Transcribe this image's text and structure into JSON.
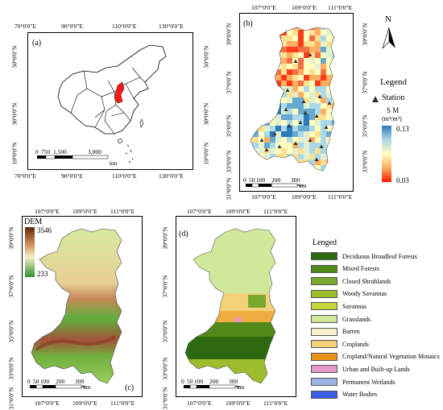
{
  "panel_a": {
    "label": "(a)",
    "top_ticks": [
      "70°0'0\"E",
      "90°0'0\"E",
      "110°0'0\"E",
      "130°0'0\"E"
    ],
    "bottom_ticks": [
      "70°0'0\"E",
      "90°0'0\"E",
      "110°0'0\"E",
      "130°0'0\"E"
    ],
    "left_ticks": [
      "50°0'0\"N",
      "30°0'0\"N",
      "10°0'0\"N"
    ],
    "right_ticks": [
      "50°0'0\"N",
      "30°0'0\"N",
      "10°0'0\"N"
    ],
    "scale_labels": [
      "0",
      "750",
      "1,500",
      "3,000"
    ],
    "scale_unit": "km",
    "highlight_color": "#ff1a1a"
  },
  "panel_b": {
    "label": "(b)",
    "top_ticks": [
      "107°0'0\"E",
      "109°0'0\"E",
      "111°0'0\"E"
    ],
    "bottom_ticks": [
      "107°0'0\"E",
      "109°0'0\"E",
      "111°0'0\"E"
    ],
    "left_ticks": [
      "39°0'0\"N",
      "37°0'0\"N",
      "35°0'0\"N",
      "33°0'0\"N",
      "31°0'0\"N"
    ],
    "right_ticks": [
      "39°0'0\"N",
      "37°0'0\"N",
      "35°0'0\"N",
      "33°0'0\"N"
    ],
    "scale_labels": [
      "0",
      "50",
      "100",
      "200",
      "300"
    ],
    "scale_unit": "km",
    "north": "N",
    "legend_title": "Legend",
    "station_label": "Station",
    "sm_title": "S M",
    "sm_unit": "(m³/m³)",
    "sm_max": "0.13",
    "sm_min": "0.03"
  },
  "panel_c": {
    "label": "(c)",
    "top_ticks": [
      "107°0'0\"E",
      "109°0'0\"E",
      "111°0'0\"E"
    ],
    "bottom_ticks": [
      "107°0'0\"E",
      "109°0'0\"E",
      "111°0'0\"E"
    ],
    "left_ticks": [
      "39°0'0\"N",
      "37°0'0\"N",
      "35°0'0\"N",
      "33°0'0\"N",
      "31°0'0\"N"
    ],
    "scale_labels": [
      "0",
      "50",
      "100",
      "200",
      "300"
    ],
    "scale_unit": "km",
    "dem_title": "DEM",
    "dem_max": "3546",
    "dem_min": "233"
  },
  "panel_d": {
    "label": "(d)",
    "top_ticks": [
      "107°0'0\"E",
      "109°0'0\"E",
      "111°0'0\"E"
    ],
    "bottom_ticks": [
      "107°0'0\"E",
      "109°0'0\"E",
      "111°0'0\"E"
    ],
    "left_ticks": [
      "39°0'0\"N",
      "37°0'0\"N",
      "35°0'0\"N",
      "33°0'0\"N",
      "31°0'0\"N"
    ],
    "scale_labels": [
      "0",
      "50",
      "100",
      "200",
      "300"
    ],
    "scale_unit": "km"
  },
  "landcover_legend": {
    "title": "Lenged",
    "items": [
      {
        "label": "Deciduous Broadleaf Forests",
        "color": "#2d6a0f"
      },
      {
        "label": "Mixed Forests",
        "color": "#4f8a1a"
      },
      {
        "label": "Closed Shrublands",
        "color": "#79a92c"
      },
      {
        "label": "Woody Savannas",
        "color": "#9dbc2e"
      },
      {
        "label": "Savannas",
        "color": "#c9d93a"
      },
      {
        "label": "Grasslands",
        "color": "#cfe89a"
      },
      {
        "label": "Barren",
        "color": "#f6f3cc"
      },
      {
        "label": "Croplands",
        "color": "#f4d27a"
      },
      {
        "label": "Cropland/Natural Vegetation Mosaics",
        "color": "#e8951a"
      },
      {
        "label": "Urban and Built-up Lands",
        "color": "#e497c8"
      },
      {
        "label": "Permanent Wetlands",
        "color": "#9db4e6"
      },
      {
        "label": "Water Bodies",
        "color": "#3a5ee6"
      }
    ]
  }
}
